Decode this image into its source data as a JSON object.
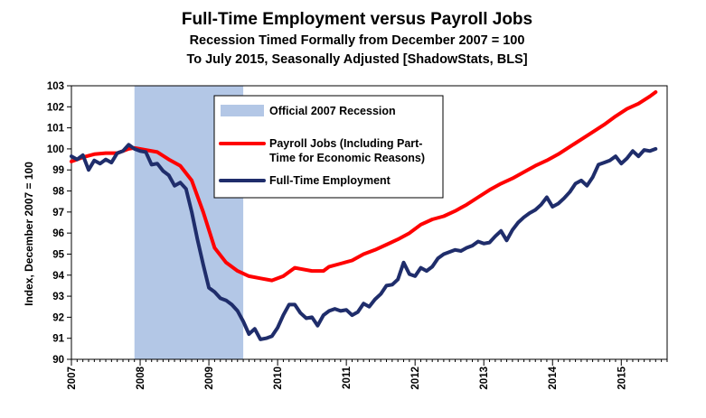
{
  "chart_data": {
    "type": "line",
    "title": "Full-Time Employment  versus Payroll Jobs",
    "subtitle_lines": [
      "Recession Timed Formally from December 2007 = 100",
      "To July 2015, Seasonally Adjusted [ShadowStats, BLS]"
    ],
    "ylabel": "Index, December 2007 = 100",
    "xlabel": "",
    "ylim": [
      90,
      103
    ],
    "yticks": [
      90,
      91,
      92,
      93,
      94,
      95,
      96,
      97,
      98,
      99,
      100,
      101,
      102,
      103
    ],
    "xlim": [
      2007.0,
      2015.667
    ],
    "xticks": [
      2007,
      2008,
      2009,
      2010,
      2011,
      2012,
      2013,
      2014,
      2015
    ],
    "grid": false,
    "legend_position": "top-center",
    "recession": {
      "name": "Official 2007 Recession",
      "start": 2007.917,
      "end": 2009.5,
      "color": "#b3c7e6"
    },
    "series": [
      {
        "name": "Payroll Jobs (Including Part-Time for Economic Reasons)",
        "legend_lines": [
          "Payroll Jobs (Including Part-",
          "Time for Economic Reasons)"
        ],
        "color": "#ff0000",
        "x": [
          2007.0,
          2007.167,
          2007.333,
          2007.5,
          2007.667,
          2007.833,
          2007.917,
          2008.083,
          2008.25,
          2008.417,
          2008.583,
          2008.75,
          2008.917,
          2009.083,
          2009.25,
          2009.417,
          2009.583,
          2009.75,
          2009.917,
          2010.083,
          2010.25,
          2010.333,
          2010.5,
          2010.667,
          2010.75,
          2010.917,
          2011.083,
          2011.25,
          2011.417,
          2011.583,
          2011.75,
          2011.917,
          2012.083,
          2012.25,
          2012.417,
          2012.583,
          2012.75,
          2012.917,
          2013.083,
          2013.25,
          2013.417,
          2013.583,
          2013.75,
          2013.917,
          2014.083,
          2014.25,
          2014.417,
          2014.583,
          2014.75,
          2014.917,
          2015.083,
          2015.25,
          2015.417,
          2015.5
        ],
        "y": [
          99.4,
          99.6,
          99.75,
          99.8,
          99.8,
          100.0,
          100.05,
          99.95,
          99.85,
          99.5,
          99.2,
          98.5,
          97.0,
          95.3,
          94.6,
          94.2,
          93.95,
          93.85,
          93.75,
          93.95,
          94.35,
          94.3,
          94.2,
          94.2,
          94.4,
          94.55,
          94.7,
          95.0,
          95.2,
          95.45,
          95.7,
          96.0,
          96.4,
          96.65,
          96.8,
          97.05,
          97.35,
          97.7,
          98.05,
          98.35,
          98.6,
          98.9,
          99.2,
          99.45,
          99.75,
          100.1,
          100.45,
          100.8,
          101.15,
          101.55,
          101.9,
          102.15,
          102.5,
          102.7
        ]
      },
      {
        "name": "Full-Time Employment",
        "legend_lines": [
          "Full-Time Employment"
        ],
        "color": "#1f2d6b",
        "x": [
          2007.0,
          2007.083,
          2007.167,
          2007.25,
          2007.333,
          2007.417,
          2007.5,
          2007.583,
          2007.667,
          2007.75,
          2007.833,
          2007.917,
          2008.0,
          2008.083,
          2008.167,
          2008.25,
          2008.333,
          2008.417,
          2008.5,
          2008.583,
          2008.667,
          2008.75,
          2008.833,
          2008.917,
          2009.0,
          2009.083,
          2009.167,
          2009.25,
          2009.333,
          2009.417,
          2009.5,
          2009.583,
          2009.667,
          2009.75,
          2009.833,
          2009.917,
          2010.0,
          2010.083,
          2010.167,
          2010.25,
          2010.333,
          2010.417,
          2010.5,
          2010.583,
          2010.667,
          2010.75,
          2010.833,
          2010.917,
          2011.0,
          2011.083,
          2011.167,
          2011.25,
          2011.333,
          2011.417,
          2011.5,
          2011.583,
          2011.667,
          2011.75,
          2011.833,
          2011.917,
          2012.0,
          2012.083,
          2012.167,
          2012.25,
          2012.333,
          2012.417,
          2012.5,
          2012.583,
          2012.667,
          2012.75,
          2012.833,
          2012.917,
          2013.0,
          2013.083,
          2013.167,
          2013.25,
          2013.333,
          2013.417,
          2013.5,
          2013.583,
          2013.667,
          2013.75,
          2013.833,
          2013.917,
          2014.0,
          2014.083,
          2014.167,
          2014.25,
          2014.333,
          2014.417,
          2014.5,
          2014.583,
          2014.667,
          2014.75,
          2014.833,
          2014.917,
          2015.0,
          2015.083,
          2015.167,
          2015.25,
          2015.333,
          2015.417,
          2015.5
        ],
        "y": [
          99.65,
          99.5,
          99.7,
          99.0,
          99.45,
          99.3,
          99.5,
          99.35,
          99.8,
          99.9,
          100.2,
          100.0,
          99.9,
          99.85,
          99.25,
          99.3,
          98.95,
          98.75,
          98.25,
          98.4,
          98.1,
          97.0,
          95.7,
          94.5,
          93.4,
          93.2,
          92.9,
          92.8,
          92.6,
          92.3,
          91.8,
          91.2,
          91.45,
          90.95,
          91.0,
          91.1,
          91.5,
          92.1,
          92.6,
          92.6,
          92.2,
          91.95,
          92.0,
          91.6,
          92.1,
          92.3,
          92.4,
          92.3,
          92.35,
          92.1,
          92.25,
          92.65,
          92.5,
          92.85,
          93.1,
          93.5,
          93.55,
          93.8,
          94.6,
          94.05,
          93.95,
          94.35,
          94.2,
          94.4,
          94.8,
          95.0,
          95.1,
          95.2,
          95.15,
          95.3,
          95.4,
          95.6,
          95.5,
          95.55,
          95.85,
          96.1,
          95.65,
          96.15,
          96.5,
          96.75,
          96.95,
          97.1,
          97.35,
          97.7,
          97.25,
          97.4,
          97.65,
          97.95,
          98.35,
          98.5,
          98.25,
          98.65,
          99.25,
          99.35,
          99.45,
          99.65,
          99.3,
          99.55,
          99.9,
          99.65,
          99.95,
          99.9,
          100.0
        ]
      }
    ]
  }
}
